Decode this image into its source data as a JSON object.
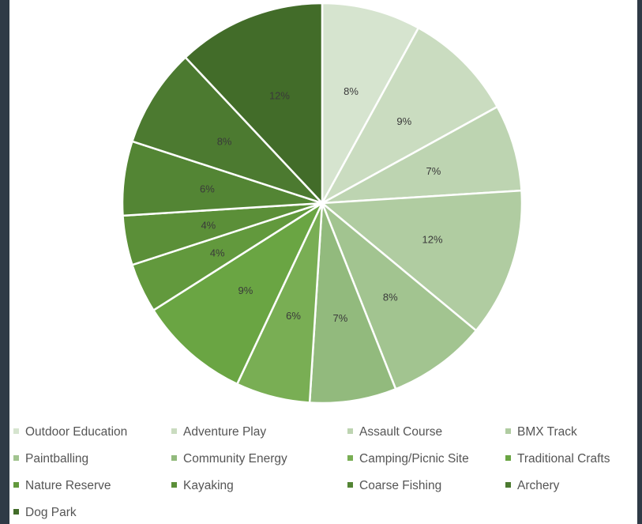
{
  "chart_data": {
    "type": "pie",
    "title": "",
    "start_angle_deg": 0,
    "direction": "clockwise",
    "slices": [
      {
        "name": "Outdoor Education",
        "value": 8,
        "label": "8%",
        "color": "#d6e4cf"
      },
      {
        "name": "Adventure Play",
        "value": 9,
        "label": "9%",
        "color": "#cadcc0"
      },
      {
        "name": "Assault Course",
        "value": 7,
        "label": "7%",
        "color": "#bdd4b1"
      },
      {
        "name": "BMX Track",
        "value": 12,
        "label": "12%",
        "color": "#b0cca1"
      },
      {
        "name": "Paintballing",
        "value": 8,
        "label": "8%",
        "color": "#a2c490"
      },
      {
        "name": "Community Energy",
        "value": 7,
        "label": "7%",
        "color": "#92ba7d"
      },
      {
        "name": "Camping/Picnic Site",
        "value": 6,
        "label": "6%",
        "color": "#79ae54"
      },
      {
        "name": "Traditional Crafts",
        "value": 9,
        "label": "9%",
        "color": "#6aa543"
      },
      {
        "name": "Nature Reserve",
        "value": 4,
        "label": "4%",
        "color": "#62993d"
      },
      {
        "name": "Kayaking",
        "value": 4,
        "label": "4%",
        "color": "#5b8f38"
      },
      {
        "name": "Coarse Fishing",
        "value": 6,
        "label": "6%",
        "color": "#538534"
      },
      {
        "name": "Archery",
        "value": 8,
        "label": "8%",
        "color": "#4c7a30"
      },
      {
        "name": "Dog Park",
        "value": 12,
        "label": "12%",
        "color": "#426c29"
      }
    ],
    "legend_position": "bottom"
  }
}
